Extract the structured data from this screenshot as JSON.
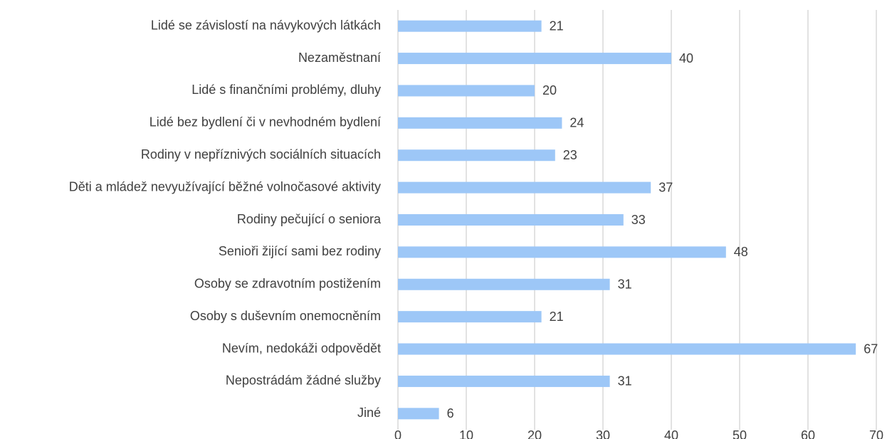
{
  "chart_data": {
    "type": "hbar",
    "categories": [
      "Lidé se závislostí na návykových látkách",
      "Nezaměstnaní",
      "Lidé s finančními problémy, dluhy",
      "Lidé bez bydlení či v nevhodném bydlení",
      "Rodiny v nepříznivých sociálních situacích",
      "Děti a mládež nevyužívající běžné volnočasové aktivity",
      "Rodiny pečující o seniora",
      "Senioři žijící sami bez rodiny",
      "Osoby se zdravotním postižením",
      "Osoby s duševním onemocněním",
      "Nevím, nedokáži odpovědět",
      "Nepostrádám žádné služby",
      "Jiné"
    ],
    "values": [
      21,
      40,
      20,
      24,
      23,
      37,
      33,
      48,
      31,
      21,
      67,
      31,
      6
    ],
    "color": "#9dc7f7",
    "xlim": [
      0,
      70
    ],
    "xticks": [
      0,
      10,
      20,
      30,
      40,
      50,
      60,
      70
    ],
    "grid": true
  }
}
